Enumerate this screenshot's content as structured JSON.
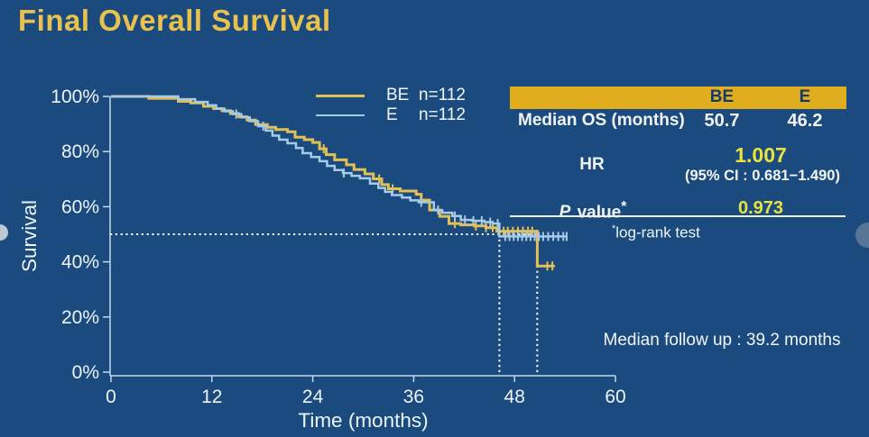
{
  "slide": {
    "title": "Final Overall Survival"
  },
  "legend": [
    {
      "name": "BE",
      "n": "n=112"
    },
    {
      "name": "E",
      "n": "n=112"
    }
  ],
  "stats": {
    "columns": [
      "BE",
      "E"
    ],
    "median_row": {
      "label": "Median OS (months)",
      "BE": "50.7",
      "E": "46.2"
    },
    "hr_row": {
      "label": "HR",
      "value": "1.007",
      "ci": "(95% CI : 0.681−1.490)"
    },
    "p_row": {
      "label_italic": "P",
      "label_rest": " value",
      "label_sup": "*",
      "value": "0.973"
    },
    "footnote_sup": "*",
    "footnote": "log-rank test",
    "followup": "Median follow up : 39.2 months"
  },
  "chart_data": {
    "type": "line",
    "subtype": "kaplan-meier-step",
    "title": "Final Overall Survival",
    "xlabel": "Time (months)",
    "ylabel": "Survival",
    "xlim": [
      0,
      60
    ],
    "ylim": [
      0,
      100
    ],
    "x_ticks": [
      0,
      12,
      24,
      36,
      48,
      60
    ],
    "y_ticks": [
      100,
      80,
      60,
      40,
      20,
      0
    ],
    "y_tick_suffix": "%",
    "grid": false,
    "legend_position": "top-center",
    "colors": {
      "axis": "#C2D9EC",
      "tick_text": "#EDF4FA",
      "dotted": "#FFFFFF"
    },
    "annotations": {
      "survival_ref_pct": 50,
      "median_marker_months": [
        46.2,
        50.7
      ]
    },
    "series": [
      {
        "name": "BE",
        "n": 112,
        "median_os_months": 50.7,
        "color": "#E3C055",
        "width": 3,
        "steps": [
          [
            0,
            100
          ],
          [
            4.5,
            99.3
          ],
          [
            8,
            98.2
          ],
          [
            9.5,
            97.6
          ],
          [
            11,
            96.4
          ],
          [
            12.2,
            95.6
          ],
          [
            13.2,
            94.8
          ],
          [
            14.2,
            93.8
          ],
          [
            15.2,
            92.6
          ],
          [
            16.2,
            91.4
          ],
          [
            17.2,
            89.8
          ],
          [
            18.6,
            88.8
          ],
          [
            19.6,
            88
          ],
          [
            21,
            87.2
          ],
          [
            21.9,
            85.2
          ],
          [
            23,
            84.3
          ],
          [
            24,
            83.3
          ],
          [
            24.8,
            81
          ],
          [
            25.6,
            78.9
          ],
          [
            26.6,
            77
          ],
          [
            28,
            75.2
          ],
          [
            28.9,
            73.5
          ],
          [
            30.2,
            71.9
          ],
          [
            31.2,
            70.1
          ],
          [
            32.2,
            68
          ],
          [
            33,
            66.5
          ],
          [
            34.4,
            65.7
          ],
          [
            36.3,
            64.5
          ],
          [
            36.9,
            62.4
          ],
          [
            37.9,
            58.8
          ],
          [
            39.1,
            56.5
          ],
          [
            40.2,
            53.9
          ],
          [
            41.6,
            53.4
          ],
          [
            43.2,
            53
          ],
          [
            44.6,
            52.4
          ],
          [
            45.9,
            51.1
          ],
          [
            50.7,
            38.5
          ],
          [
            52.8,
            38.5
          ]
        ],
        "censor_months": [
          25.3,
          31.9,
          33.5,
          40.9,
          43.4,
          44.6,
          45.4,
          46.1,
          46.7,
          47.2,
          47.8,
          48.4,
          49,
          49.6,
          50.1,
          51.9,
          52.5
        ]
      },
      {
        "name": "E",
        "n": 112,
        "median_os_months": 46.2,
        "color": "#A6CBE9",
        "width": 2.5,
        "steps": [
          [
            0,
            100
          ],
          [
            8,
            99
          ],
          [
            10,
            98
          ],
          [
            11.5,
            96.8
          ],
          [
            12.5,
            95.6
          ],
          [
            13.5,
            94.6
          ],
          [
            14.5,
            93.6
          ],
          [
            15.5,
            92.4
          ],
          [
            16.5,
            91
          ],
          [
            17.5,
            89.2
          ],
          [
            18.4,
            87.6
          ],
          [
            19.2,
            85.8
          ],
          [
            20,
            84.3
          ],
          [
            21,
            83
          ],
          [
            22,
            81.3
          ],
          [
            22.8,
            79.4
          ],
          [
            23.8,
            78
          ],
          [
            24.8,
            76.5
          ],
          [
            25.7,
            74.8
          ],
          [
            26.6,
            73.3
          ],
          [
            27.6,
            72.2
          ],
          [
            28.6,
            71.2
          ],
          [
            29.6,
            70.3
          ],
          [
            30.8,
            68.4
          ],
          [
            31.8,
            66.8
          ],
          [
            32.6,
            65.4
          ],
          [
            33.4,
            64.2
          ],
          [
            34.6,
            63.3
          ],
          [
            35.6,
            62.3
          ],
          [
            36.6,
            61.6
          ],
          [
            38.4,
            58.8
          ],
          [
            39.4,
            57.8
          ],
          [
            40.6,
            56.6
          ],
          [
            41.6,
            55.2
          ],
          [
            43,
            54.9
          ],
          [
            44.4,
            54.4
          ],
          [
            45.4,
            53.9
          ],
          [
            46.2,
            49.2
          ],
          [
            54.3,
            49.2
          ]
        ],
        "censor_months": [
          14.9,
          18.1,
          27.7,
          36.9,
          38.9,
          40.9,
          42.1,
          43.1,
          44.1,
          45.1,
          46,
          46.9,
          47.4,
          47.9,
          48.4,
          48.9,
          49.4,
          49.9,
          50.4,
          50.9,
          51.4,
          52,
          52.6,
          53.2,
          53.8,
          54.2
        ]
      }
    ]
  }
}
